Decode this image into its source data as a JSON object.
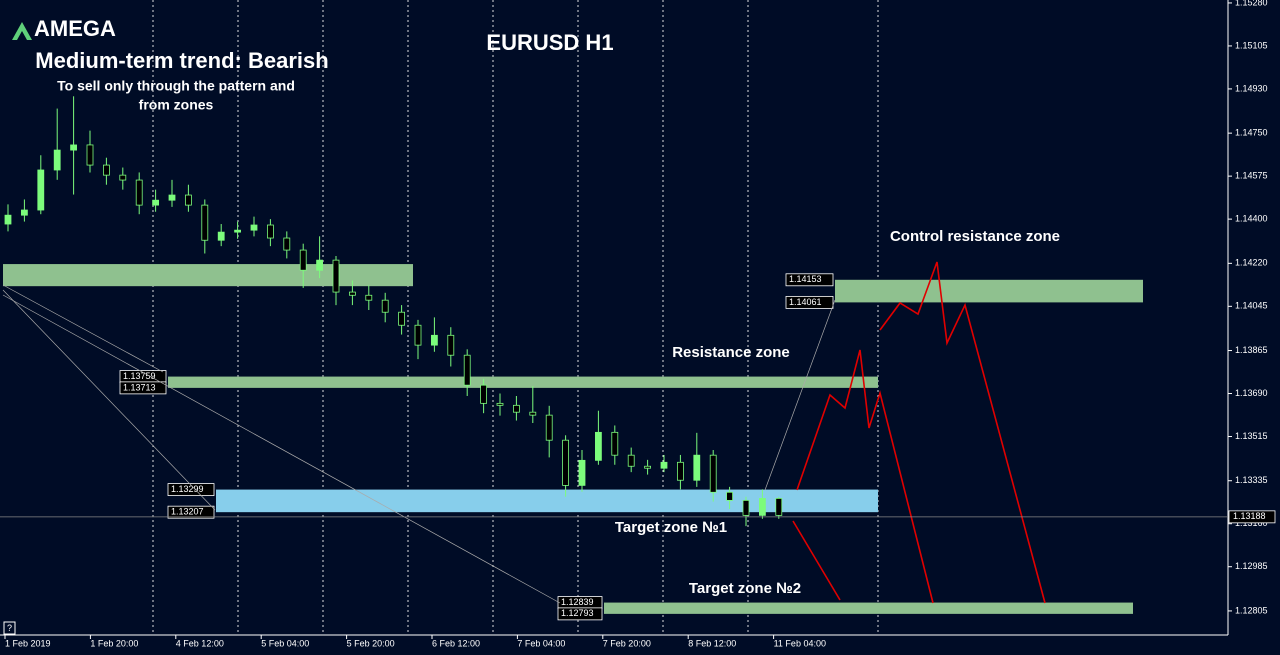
{
  "chart_data": {
    "type": "candlestick",
    "brand": "AMEGA",
    "title": "EURUSD H1",
    "heading": "Medium-term trend: Bearish",
    "subtitle_lines": [
      "To sell only through the pattern and",
      "from zones"
    ],
    "annotations": [
      "Control resistance zone",
      "Resistance zone",
      "Target zone №1",
      "Target zone №2"
    ],
    "help": "?",
    "x_labels": [
      "1 Feb 2019",
      "1 Feb 20:00",
      "4 Feb 12:00",
      "5 Feb 04:00",
      "5 Feb 20:00",
      "6 Feb 12:00",
      "7 Feb 04:00",
      "7 Feb 20:00",
      "8 Feb 12:00",
      "11 Feb 04:00"
    ],
    "ylim": [
      1.12707,
      1.15292
    ],
    "yticks": [
      {
        "value": 1.1528,
        "label": "1.15280"
      },
      1.15105,
      {
        "value": 1.1493,
        "label": "1.14930"
      },
      {
        "value": 1.1475,
        "label": "1.14750"
      },
      1.14575,
      {
        "value": 1.144,
        "label": "1.14400"
      },
      {
        "value": 1.1422,
        "label": "1.14220"
      },
      1.14045,
      1.13865,
      {
        "value": 1.1369,
        "label": "1.13690"
      },
      1.13515,
      1.13335,
      {
        "value": 1.1316,
        "label": "1.13160"
      },
      1.12985,
      1.12805
    ],
    "current_price": 1.13188,
    "bull_color": "#7cfc7c",
    "bear_color": "#000000",
    "candles": [
      [
        1.1438,
        1.1446,
        1.1435,
        1.14416
      ],
      [
        1.14416,
        1.1448,
        1.1439,
        1.14437
      ],
      [
        1.14437,
        1.1466,
        1.1442,
        1.146
      ],
      [
        1.146,
        1.1485,
        1.1456,
        1.14681
      ],
      [
        1.14681,
        1.149,
        1.145,
        1.14702
      ],
      [
        1.14702,
        1.1476,
        1.1459,
        1.1462
      ],
      [
        1.1462,
        1.1465,
        1.1454,
        1.14579
      ],
      [
        1.14579,
        1.1461,
        1.1452,
        1.14559
      ],
      [
        1.14559,
        1.1459,
        1.1442,
        1.14457
      ],
      [
        1.14457,
        1.1452,
        1.1443,
        1.14477
      ],
      [
        1.14477,
        1.1456,
        1.1445,
        1.14498
      ],
      [
        1.14498,
        1.1454,
        1.1443,
        1.14457
      ],
      [
        1.14457,
        1.1448,
        1.1426,
        1.14314
      ],
      [
        1.14314,
        1.1438,
        1.1429,
        1.14347
      ],
      [
        1.14347,
        1.1439,
        1.1432,
        1.14355
      ],
      [
        1.14355,
        1.1441,
        1.1433,
        1.14376
      ],
      [
        1.14376,
        1.144,
        1.1429,
        1.14323
      ],
      [
        1.14323,
        1.1435,
        1.1424,
        1.14274
      ],
      [
        1.14274,
        1.143,
        1.1412,
        1.14192
      ],
      [
        1.14192,
        1.1433,
        1.1416,
        1.14233
      ],
      [
        1.14233,
        1.1425,
        1.1405,
        1.14103
      ],
      [
        1.14103,
        1.1415,
        1.1405,
        1.1409
      ],
      [
        1.1409,
        1.1413,
        1.1403,
        1.1407
      ],
      [
        1.1407,
        1.141,
        1.1398,
        1.14021
      ],
      [
        1.14021,
        1.1405,
        1.1393,
        1.13968
      ],
      [
        1.13968,
        1.1399,
        1.1383,
        1.13887
      ],
      [
        1.13887,
        1.14,
        1.1386,
        1.13927
      ],
      [
        1.13927,
        1.1396,
        1.138,
        1.13846
      ],
      [
        1.13846,
        1.1387,
        1.1368,
        1.13724
      ],
      [
        1.13724,
        1.1375,
        1.1361,
        1.1365
      ],
      [
        1.1365,
        1.1369,
        1.136,
        1.13642
      ],
      [
        1.13642,
        1.1368,
        1.1358,
        1.13614
      ],
      [
        1.13614,
        1.1372,
        1.1357,
        1.13602
      ],
      [
        1.13602,
        1.1364,
        1.1343,
        1.135
      ],
      [
        1.135,
        1.1352,
        1.1327,
        1.13316
      ],
      [
        1.13316,
        1.1346,
        1.1329,
        1.13418
      ],
      [
        1.13418,
        1.1362,
        1.134,
        1.13532
      ],
      [
        1.13532,
        1.1356,
        1.134,
        1.13439
      ],
      [
        1.13439,
        1.1347,
        1.1337,
        1.13394
      ],
      [
        1.13394,
        1.1342,
        1.1336,
        1.13386
      ],
      [
        1.13386,
        1.1344,
        1.1337,
        1.1341
      ],
      [
        1.1341,
        1.1344,
        1.133,
        1.13337
      ],
      [
        1.13337,
        1.1353,
        1.1331,
        1.13439
      ],
      [
        1.13439,
        1.1346,
        1.1325,
        1.13288
      ],
      [
        1.13288,
        1.1331,
        1.1322,
        1.13255
      ],
      [
        1.13255,
        1.1327,
        1.1315,
        1.13194
      ],
      [
        1.13194,
        1.133,
        1.1318,
        1.13263
      ],
      [
        1.13263,
        1.1327,
        1.1318,
        1.13194
      ]
    ],
    "zones": [
      {
        "top": 1.14217,
        "bottom": 1.14127,
        "color": "#8fc18f",
        "labeled": false
      },
      {
        "top": 1.14153,
        "bottom": 1.14061,
        "color": "#8fc18f",
        "labeled": true
      },
      {
        "top": 1.13759,
        "bottom": 1.13713,
        "color": "#8fc18f",
        "labeled": true
      },
      {
        "top": 1.13299,
        "bottom": 1.13207,
        "color": "#87ceeb",
        "labeled": true
      },
      {
        "top": 1.12839,
        "bottom": 1.12793,
        "color": "#8fc18f",
        "labeled": true
      }
    ]
  }
}
